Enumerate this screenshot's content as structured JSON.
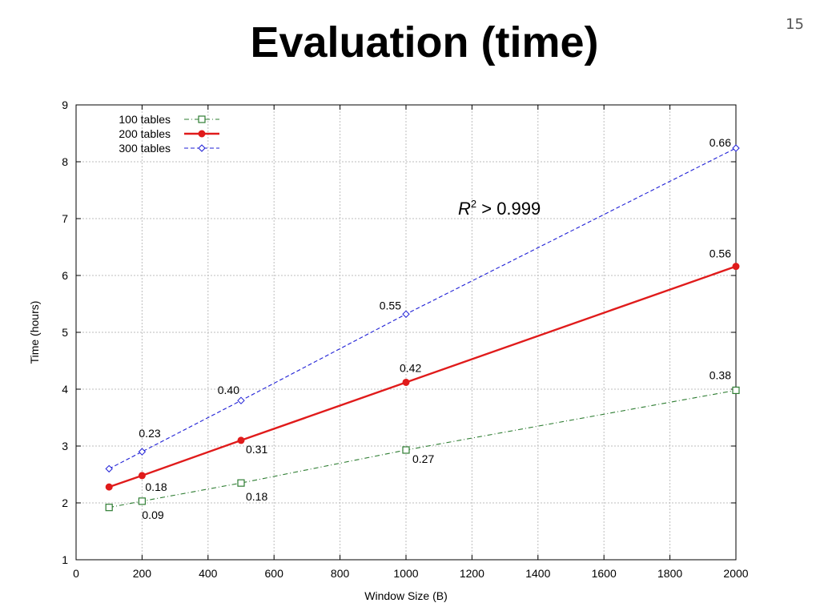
{
  "slide": {
    "title": "Evaluation (time)",
    "number": "15"
  },
  "chart_data": {
    "type": "line",
    "xlabel": "Window Size (B)",
    "ylabel": "Time (hours)",
    "xlim": [
      0,
      2000
    ],
    "ylim": [
      1,
      9
    ],
    "xticks": [
      0,
      200,
      400,
      600,
      800,
      1000,
      1200,
      1400,
      1600,
      1800,
      2000
    ],
    "yticks": [
      1,
      2,
      3,
      4,
      5,
      6,
      7,
      8,
      9
    ],
    "grid": true,
    "legend_position": "top-left",
    "annotation": {
      "R": "R",
      "sup": "2",
      "rest": " > 0.999"
    },
    "series": [
      {
        "name": "100 tables",
        "color": "#2e7d32",
        "style": "dash-dot",
        "marker": "square",
        "x": [
          100,
          200,
          500,
          1000,
          2000
        ],
        "y": [
          1.92,
          2.03,
          2.35,
          2.93,
          3.98
        ],
        "labels": [
          "",
          "0.09",
          "0.18",
          "0.27",
          "0.38"
        ]
      },
      {
        "name": "200 tables",
        "color": "#e01b1b",
        "style": "solid",
        "marker": "circle",
        "x": [
          100,
          200,
          500,
          1000,
          2000
        ],
        "y": [
          2.28,
          2.48,
          3.1,
          4.12,
          6.16
        ],
        "labels": [
          "",
          "0.18",
          "0.31",
          "0.42",
          "0.56"
        ]
      },
      {
        "name": "300 tables",
        "color": "#1f1fd6",
        "style": "dashed",
        "marker": "diamond",
        "x": [
          100,
          200,
          500,
          1000,
          2000
        ],
        "y": [
          2.6,
          2.9,
          3.8,
          5.32,
          8.24
        ],
        "labels": [
          "",
          "0.23",
          "0.40",
          "0.55",
          "0.66"
        ]
      }
    ]
  }
}
